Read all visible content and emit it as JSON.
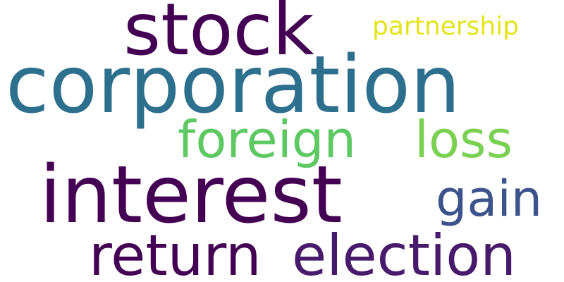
{
  "words": [
    {
      "id": "stock",
      "text": "stock",
      "color": "#440154"
    },
    {
      "id": "partnership",
      "text": "partnership",
      "color": "#e3e418"
    },
    {
      "id": "corporation",
      "text": "corporation",
      "color": "#2d708e"
    },
    {
      "id": "foreign",
      "text": "foreign",
      "color": "#5ec962"
    },
    {
      "id": "loss",
      "text": "loss",
      "color": "#7ad151"
    },
    {
      "id": "interest",
      "text": "interest",
      "color": "#440154"
    },
    {
      "id": "gain",
      "text": "gain",
      "color": "#3b528b"
    },
    {
      "id": "return",
      "text": "return",
      "color": "#440154"
    },
    {
      "id": "election",
      "text": "election",
      "color": "#481a6c"
    }
  ]
}
